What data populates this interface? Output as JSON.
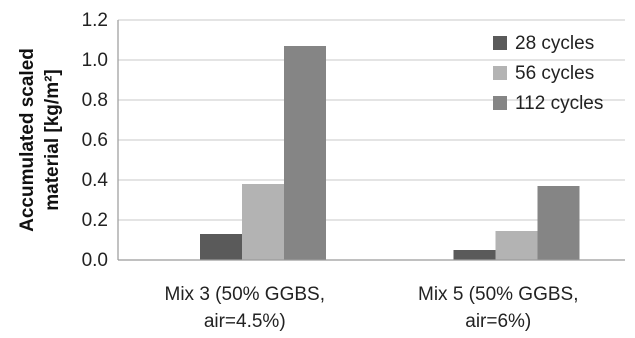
{
  "chart_data": {
    "type": "bar",
    "title": "",
    "xlabel": "",
    "ylabel_lines": [
      "Accumulated scaled",
      "material [kg/m²]"
    ],
    "ylim": [
      0,
      1.2
    ],
    "yticks": [
      "0.0",
      "0.2",
      "0.4",
      "0.6",
      "0.8",
      "1.0",
      "1.2"
    ],
    "grid": true,
    "legend_position": "top-right",
    "categories": [
      [
        "Mix 3 (50% GGBS,",
        "air=4.5%)"
      ],
      [
        "Mix 5 (50% GGBS,",
        "air=6%)"
      ]
    ],
    "series": [
      {
        "name": "28 cycles",
        "color": "#5a5a5a",
        "values": [
          0.13,
          0.05
        ]
      },
      {
        "name": "56 cycles",
        "color": "#b3b3b3",
        "values": [
          0.38,
          0.145
        ]
      },
      {
        "name": "112 cycles",
        "color": "#858585",
        "values": [
          1.07,
          0.37
        ]
      }
    ],
    "colors": {
      "grid": "#c8c8c8",
      "axis": "#9a9a9a"
    }
  }
}
